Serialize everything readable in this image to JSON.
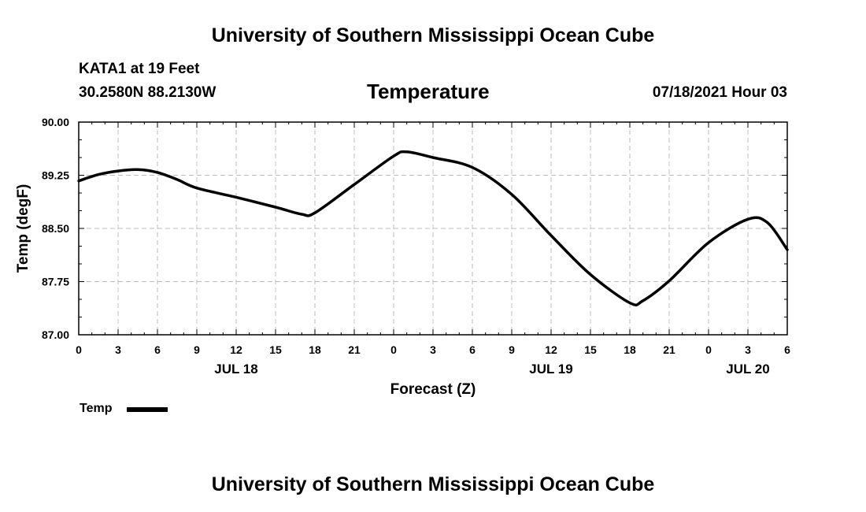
{
  "header": {
    "title_top": "University of Southern Mississippi Ocean Cube",
    "station": "KATA1 at 19 Feet",
    "coords": "30.2580N  88.2130W",
    "datetime": "07/18/2021 Hour 03",
    "title_bottom": "University of Southern Mississippi Ocean Cube"
  },
  "legend": {
    "label": "Temp"
  },
  "chart_data": {
    "type": "line",
    "title": "Temperature",
    "xlabel": "Forecast (Z)",
    "ylabel": "Temp (degF)",
    "x_unit": "forecast hours from JUL 18 00Z",
    "xlim": [
      0,
      54
    ],
    "ylim": [
      87.0,
      90.0
    ],
    "grid": true,
    "y_ticks": [
      "87.00",
      "87.75",
      "88.50",
      "89.25",
      "90.00"
    ],
    "y_tick_values": [
      87.0,
      87.75,
      88.5,
      89.25,
      90.0
    ],
    "x_ticks": [
      {
        "hour": 0,
        "label": "0"
      },
      {
        "hour": 3,
        "label": "3"
      },
      {
        "hour": 6,
        "label": "6"
      },
      {
        "hour": 9,
        "label": "9"
      },
      {
        "hour": 12,
        "label": "12"
      },
      {
        "hour": 15,
        "label": "15"
      },
      {
        "hour": 18,
        "label": "18"
      },
      {
        "hour": 21,
        "label": "21"
      },
      {
        "hour": 24,
        "label": "0"
      },
      {
        "hour": 27,
        "label": "3"
      },
      {
        "hour": 30,
        "label": "6"
      },
      {
        "hour": 33,
        "label": "9"
      },
      {
        "hour": 36,
        "label": "12"
      },
      {
        "hour": 39,
        "label": "15"
      },
      {
        "hour": 42,
        "label": "18"
      },
      {
        "hour": 45,
        "label": "21"
      },
      {
        "hour": 48,
        "label": "0"
      },
      {
        "hour": 51,
        "label": "3"
      },
      {
        "hour": 54,
        "label": "6"
      }
    ],
    "date_labels": [
      {
        "hour": 12,
        "label": "JUL 18"
      },
      {
        "hour": 36,
        "label": "JUL 19"
      },
      {
        "hour": 51,
        "label": "JUL 20"
      }
    ],
    "series": [
      {
        "name": "Temp",
        "color": "#000000",
        "x": [
          0,
          1.5,
          3,
          4.5,
          6,
          7.5,
          9,
          12,
          15,
          17,
          18,
          21,
          24,
          25,
          27,
          30,
          33,
          36,
          39,
          42,
          43,
          45,
          48,
          51,
          52.5,
          54
        ],
        "y": [
          89.17,
          89.26,
          89.31,
          89.33,
          89.29,
          89.19,
          89.07,
          88.94,
          88.8,
          88.7,
          88.72,
          89.12,
          89.52,
          89.58,
          89.5,
          89.36,
          88.98,
          88.4,
          87.85,
          87.45,
          87.48,
          87.76,
          88.3,
          88.63,
          88.58,
          88.2
        ]
      }
    ]
  }
}
